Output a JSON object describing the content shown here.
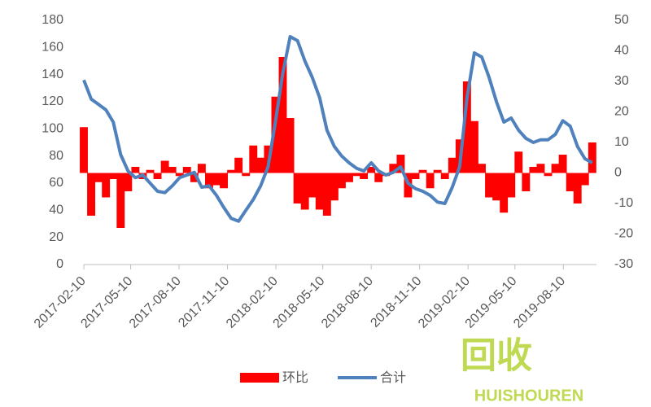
{
  "chart_data": {
    "type": "bar-line",
    "x": [
      "2017-02-10",
      "2017-02-24",
      "2017-03-10",
      "2017-03-24",
      "2017-04-07",
      "2017-04-21",
      "2017-05-05",
      "2017-05-19",
      "2017-06-02",
      "2017-06-16",
      "2017-06-30",
      "2017-07-14",
      "2017-07-28",
      "2017-08-11",
      "2017-08-25",
      "2017-09-08",
      "2017-09-22",
      "2017-10-06",
      "2017-10-20",
      "2017-11-03",
      "2017-11-17",
      "2017-12-01",
      "2017-12-15",
      "2017-12-29",
      "2018-01-12",
      "2018-01-26",
      "2018-02-09",
      "2018-02-23",
      "2018-03-09",
      "2018-03-23",
      "2018-04-06",
      "2018-04-20",
      "2018-05-04",
      "2018-05-18",
      "2018-06-01",
      "2018-06-15",
      "2018-06-29",
      "2018-07-13",
      "2018-07-27",
      "2018-08-10",
      "2018-08-24",
      "2018-09-07",
      "2018-09-21",
      "2018-10-05",
      "2018-10-19",
      "2018-11-02",
      "2018-11-16",
      "2018-11-30",
      "2018-12-14",
      "2018-12-28",
      "2019-01-11",
      "2019-01-25",
      "2019-02-08",
      "2019-02-22",
      "2019-03-08",
      "2019-03-22",
      "2019-04-05",
      "2019-04-19",
      "2019-05-03",
      "2019-05-17",
      "2019-05-31",
      "2019-06-14",
      "2019-06-28",
      "2019-07-12",
      "2019-07-26",
      "2019-08-09",
      "2019-08-23",
      "2019-09-06",
      "2019-09-20",
      "2019-10-04"
    ],
    "xlim": [
      "2017-02-10",
      "2019-10-12"
    ],
    "xticks": [
      "2017-02-10",
      "2017-05-10",
      "2017-08-10",
      "2017-11-10",
      "2018-02-10",
      "2018-05-10",
      "2018-08-10",
      "2018-11-10",
      "2019-02-10",
      "2019-05-10",
      "2019-08-10"
    ],
    "ylim": [
      0,
      180
    ],
    "yticks": [
      0,
      20,
      40,
      60,
      80,
      100,
      120,
      140,
      160,
      180
    ],
    "y2lim": [
      -30,
      50
    ],
    "y2ticks": [
      -30,
      -20,
      -10,
      0,
      10,
      20,
      30,
      40,
      50
    ],
    "series": [
      {
        "name": "环比",
        "color": "#ff0000",
        "kind": "bar",
        "axis": "y2",
        "values": [
          15,
          -14,
          -3,
          -8,
          -2,
          -18,
          -6,
          2,
          -2,
          1,
          -2,
          4,
          2,
          -1,
          2,
          -3,
          3,
          -5,
          -4,
          -5,
          1,
          5,
          -1,
          9,
          5,
          9,
          25,
          38,
          18,
          -10,
          -12,
          -8,
          -12,
          -14,
          -9,
          -5,
          -3,
          -1,
          -2,
          2,
          -3,
          -1,
          3,
          6,
          -8,
          -2,
          1,
          -5,
          1,
          -2,
          5,
          11,
          30,
          17,
          3,
          -8,
          -9,
          -13,
          -8,
          7,
          -6,
          2,
          3,
          -1,
          3,
          6,
          -6,
          -10,
          -4,
          10
        ]
      },
      {
        "name": "合计",
        "color": "#4f81bd",
        "kind": "line",
        "axis": "y",
        "values": [
          136,
          122,
          118,
          114,
          105,
          81,
          69,
          64,
          66,
          60,
          54,
          53,
          58,
          64,
          66,
          68,
          57,
          58,
          51,
          42,
          34,
          32,
          40,
          48,
          58,
          72,
          105,
          141,
          168,
          165,
          150,
          138,
          123,
          99,
          87,
          80,
          75,
          71,
          69,
          75,
          69,
          66,
          68,
          72,
          60,
          56,
          54,
          51,
          46,
          45,
          57,
          72,
          123,
          156,
          153,
          138,
          120,
          105,
          108,
          99,
          93,
          90,
          92,
          92,
          96,
          106,
          102,
          87,
          78,
          75
        ]
      }
    ],
    "watermark": {
      "text": "回收",
      "subtext": "HUISHOUREN"
    }
  }
}
